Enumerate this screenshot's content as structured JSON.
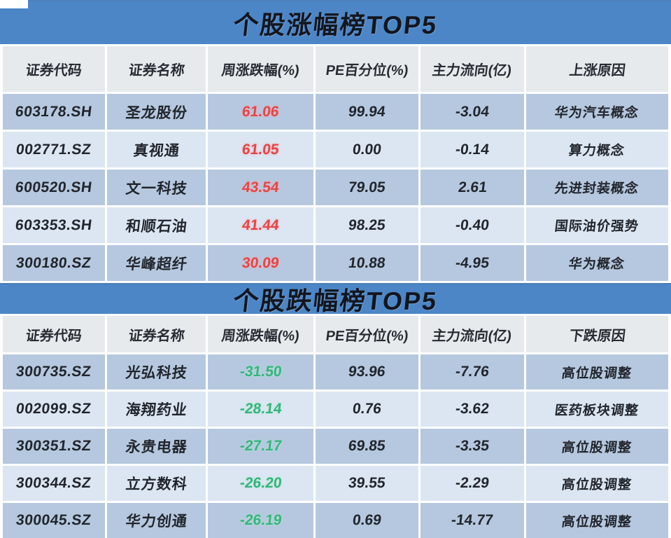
{
  "colors": {
    "banner_blue": "#4c86c6",
    "row_dark": "#b5c8df",
    "row_light": "#dbe6f2",
    "header_gray": "#e7eaec",
    "gain_red": "#e64545",
    "loss_green": "#35b57c",
    "text_dark": "#22252c"
  },
  "chart_data": [
    {
      "type": "table",
      "title": "个股涨幅榜TOP5",
      "columns": [
        "证券代码",
        "证券名称",
        "周涨跌幅(%)",
        "PE百分位(%)",
        "主力流向(亿)",
        "上涨原因"
      ],
      "rows": [
        [
          "603178.SH",
          "圣龙股份",
          "61.06",
          "99.94",
          "-3.04",
          "华为汽车概念"
        ],
        [
          "002771.SZ",
          "真视通",
          "61.05",
          "0.00",
          "-0.14",
          "算力概念"
        ],
        [
          "600520.SH",
          "文一科技",
          "43.54",
          "79.05",
          "2.61",
          "先进封装概念"
        ],
        [
          "603353.SH",
          "和顺石油",
          "41.44",
          "98.25",
          "-0.40",
          "国际油价强势"
        ],
        [
          "300180.SZ",
          "华峰超纤",
          "30.09",
          "10.88",
          "-4.95",
          "华为概念"
        ]
      ],
      "change_color": "#e64545"
    },
    {
      "type": "table",
      "title": "个股跌幅榜TOP5",
      "columns": [
        "证券代码",
        "证券名称",
        "周涨跌幅(%)",
        "PE百分位(%)",
        "主力流向(亿)",
        "下跌原因"
      ],
      "rows": [
        [
          "300735.SZ",
          "光弘科技",
          "-31.50",
          "93.96",
          "-7.76",
          "高位股调整"
        ],
        [
          "002099.SZ",
          "海翔药业",
          "-28.14",
          "0.76",
          "-3.62",
          "医药板块调整"
        ],
        [
          "300351.SZ",
          "永贵电器",
          "-27.17",
          "69.85",
          "-3.35",
          "高位股调整"
        ],
        [
          "300344.SZ",
          "立方数科",
          "-26.20",
          "39.55",
          "-2.29",
          "高位股调整"
        ],
        [
          "300045.SZ",
          "华力创通",
          "-26.19",
          "0.69",
          "-14.77",
          "高位股调整"
        ]
      ],
      "change_color": "#35b57c"
    }
  ]
}
